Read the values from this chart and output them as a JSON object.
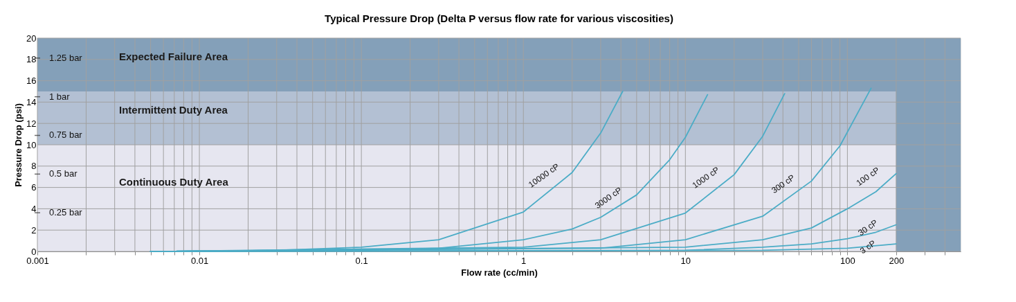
{
  "chart_data": {
    "type": "line",
    "title": "Typical Pressure Drop (Delta P versus flow rate for various viscosities)",
    "xlabel": "Flow rate (cc/min)",
    "ylabel": "Pressure Drop (psi)",
    "log": "x",
    "grid": true,
    "legend": false,
    "marker": "none",
    "line_style": "solid",
    "xlim": [
      0.001,
      500
    ],
    "ylim": [
      0,
      20
    ],
    "xticks": [
      0.001,
      {
        "value": 0.002,
        "label": null
      },
      {
        "value": 0.003,
        "label": null
      },
      {
        "value": 0.004,
        "label": null
      },
      {
        "value": 0.005,
        "label": null
      },
      {
        "value": 0.006,
        "label": null
      },
      {
        "value": 0.007,
        "label": null
      },
      {
        "value": 0.008,
        "label": null
      },
      {
        "value": 0.009,
        "label": null
      },
      0.01,
      {
        "value": 0.02,
        "label": null
      },
      {
        "value": 0.03,
        "label": null
      },
      {
        "value": 0.04,
        "label": null
      },
      {
        "value": 0.05,
        "label": null
      },
      {
        "value": 0.06,
        "label": null
      },
      {
        "value": 0.07,
        "label": null
      },
      {
        "value": 0.08,
        "label": null
      },
      {
        "value": 0.09,
        "label": null
      },
      0.1,
      {
        "value": 0.2,
        "label": null
      },
      {
        "value": 0.3,
        "label": null
      },
      {
        "value": 0.4,
        "label": null
      },
      {
        "value": 0.5,
        "label": null
      },
      {
        "value": 0.6,
        "label": null
      },
      {
        "value": 0.7,
        "label": null
      },
      {
        "value": 0.8,
        "label": null
      },
      {
        "value": 0.9,
        "label": null
      },
      1,
      {
        "value": 2,
        "label": null
      },
      {
        "value": 3,
        "label": null
      },
      {
        "value": 4,
        "label": null
      },
      {
        "value": 5,
        "label": null
      },
      {
        "value": 6,
        "label": null
      },
      {
        "value": 7,
        "label": null
      },
      {
        "value": 8,
        "label": null
      },
      {
        "value": 9,
        "label": null
      },
      10,
      {
        "value": 20,
        "label": null
      },
      {
        "value": 30,
        "label": null
      },
      {
        "value": 40,
        "label": null
      },
      {
        "value": 50,
        "label": null
      },
      {
        "value": 60,
        "label": null
      },
      {
        "value": 70,
        "label": null
      },
      {
        "value": 80,
        "label": null
      },
      {
        "value": 90,
        "label": null
      },
      100,
      200,
      {
        "value": 300,
        "label": null
      },
      {
        "value": 400,
        "label": null
      }
    ],
    "yticks": [
      0,
      2,
      4,
      6,
      8,
      10,
      12,
      14,
      16,
      18,
      20
    ],
    "y2lim": [
      0,
      1.379
    ],
    "y2ticks": [
      {
        "value": 0.25,
        "label": "0.25 bar"
      },
      {
        "value": 0.5,
        "label": "0.5 bar"
      },
      {
        "value": 0.75,
        "label": "0.75 bar"
      },
      {
        "value": 1,
        "label": "1 bar"
      },
      {
        "value": 1.25,
        "label": "1.25 bar"
      }
    ],
    "bands": [
      {
        "axis": "y",
        "from": 0,
        "to": 10,
        "label": "Continuous Duty Area",
        "color": "#e6e6f0"
      },
      {
        "axis": "y",
        "from": 10,
        "to": 15,
        "label": "Intermittent Duty Area",
        "color": "#b3c0d3"
      },
      {
        "axis": "y",
        "from": 15,
        "to": 20,
        "label": "Expected Failure Area",
        "color": "#84a0b9"
      },
      {
        "axis": "x",
        "from": 200,
        "to": 500,
        "color": "#84a0b9"
      }
    ],
    "series": [
      {
        "name": "10000 cP",
        "color": "#4bacc6",
        "x": [
          0.005,
          0.01,
          0.03,
          0.1,
          0.3,
          1,
          2,
          3,
          4.1
        ],
        "values": [
          0,
          0,
          0.1,
          0.4,
          1.1,
          3.7,
          7.4,
          11.1,
          15.0
        ]
      },
      {
        "name": "3000 cP",
        "color": "#4bacc6",
        "x": [
          0.005,
          0.1,
          0.3,
          1,
          2,
          3,
          5,
          8,
          10,
          13.7
        ],
        "values": [
          0,
          0.1,
          0.3,
          1.1,
          2.1,
          3.2,
          5.3,
          8.6,
          10.7,
          14.7
        ]
      },
      {
        "name": "1000 cP",
        "color": "#4bacc6",
        "x": [
          0.005,
          1,
          3,
          10,
          20,
          30,
          41
        ],
        "values": [
          0,
          0.4,
          1.1,
          3.6,
          7.2,
          10.8,
          14.8
        ]
      },
      {
        "name": "300 cP",
        "color": "#4bacc6",
        "x": [
          0.005,
          3,
          10,
          30,
          60,
          90,
          140
        ],
        "values": [
          0,
          0.3,
          1.1,
          3.3,
          6.6,
          9.9,
          15.3
        ]
      },
      {
        "name": "100 cP",
        "color": "#4bacc6",
        "x": [
          0.005,
          10,
          30,
          60,
          100,
          150,
          200
        ],
        "values": [
          0,
          0.4,
          1.1,
          2.2,
          4.0,
          5.6,
          7.3
        ]
      },
      {
        "name": "30 cP",
        "color": "#4bacc6",
        "x": [
          0.005,
          10,
          30,
          60,
          100,
          150,
          200
        ],
        "values": [
          0,
          0.1,
          0.4,
          0.7,
          1.2,
          1.8,
          2.5
        ]
      },
      {
        "name": "3 cP",
        "color": "#4bacc6",
        "x": [
          0.005,
          30,
          100,
          200
        ],
        "values": [
          0,
          0.1,
          0.3,
          0.7
        ]
      }
    ]
  }
}
